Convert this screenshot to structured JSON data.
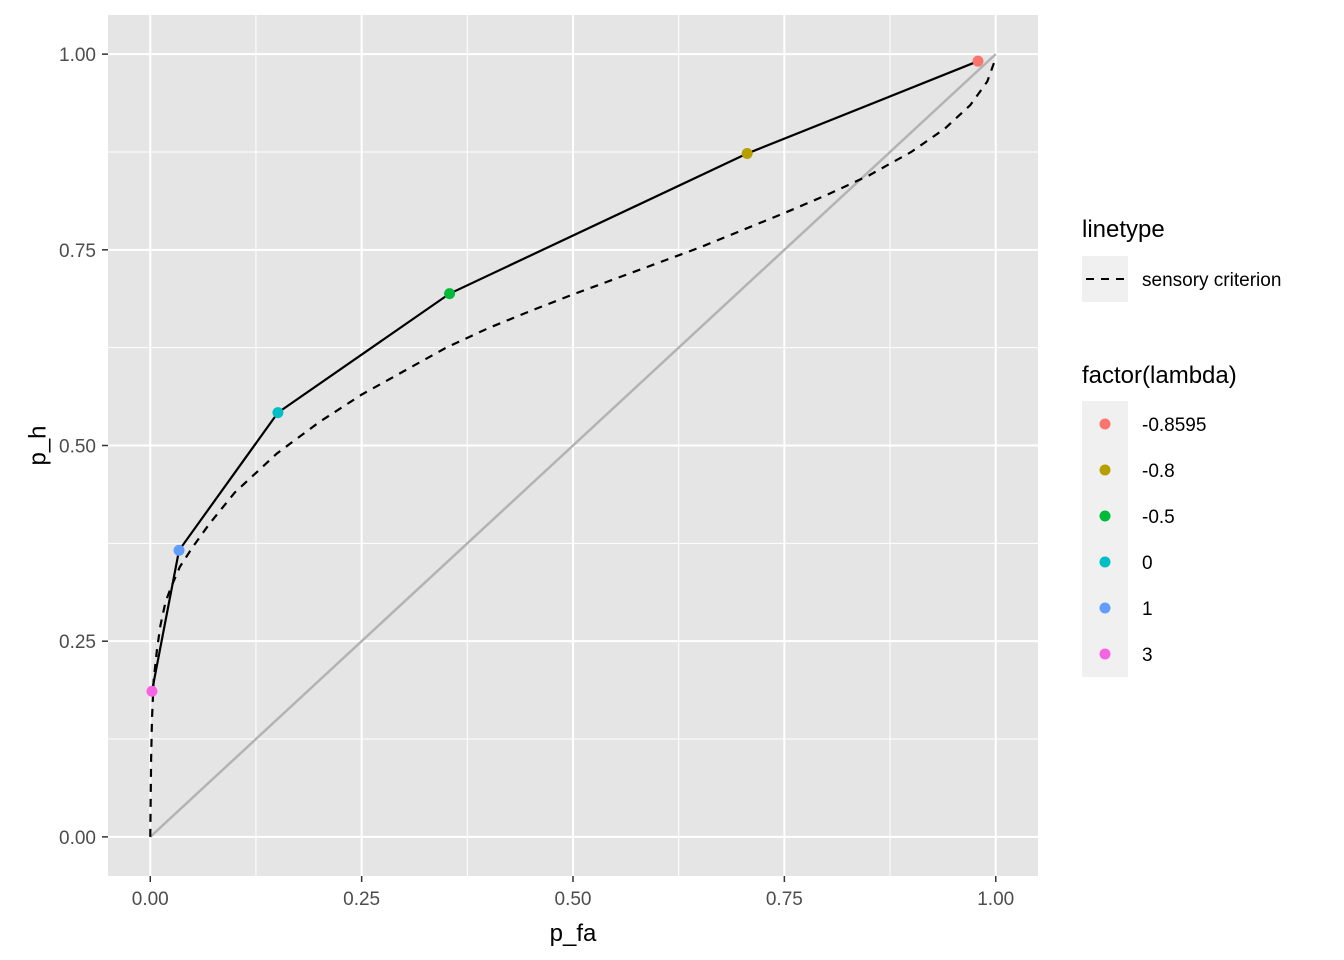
{
  "chart_data": {
    "type": "line",
    "xlabel": "p_fa",
    "ylabel": "p_h",
    "xlim": [
      -0.05,
      1.05
    ],
    "ylim": [
      -0.05,
      1.05
    ],
    "x_ticks": [
      "0.00",
      "0.25",
      "0.50",
      "0.75",
      "1.00"
    ],
    "y_ticks": [
      "0.00",
      "0.25",
      "0.50",
      "0.75",
      "1.00"
    ],
    "grid": true,
    "legend_position": "right",
    "series": [
      {
        "kind": "points-with-line",
        "color": "#000000",
        "points": [
          {
            "lambda": "-0.8595",
            "x": 0.979,
            "y": 0.991,
            "color": "#F8766D"
          },
          {
            "lambda": "-0.8",
            "x": 0.706,
            "y": 0.873,
            "color": "#B79F00"
          },
          {
            "lambda": "-0.5",
            "x": 0.354,
            "y": 0.694,
            "color": "#00BA38"
          },
          {
            "lambda": "0",
            "x": 0.151,
            "y": 0.542,
            "color": "#00BFC4"
          },
          {
            "lambda": "1",
            "x": 0.034,
            "y": 0.366,
            "color": "#619CFF"
          },
          {
            "lambda": "3",
            "x": 0.002,
            "y": 0.186,
            "color": "#F564E3"
          }
        ]
      },
      {
        "name": "sensory criterion",
        "kind": "dashed",
        "color": "#000000",
        "x": [
          0.0,
          0.0005,
          0.001,
          0.002,
          0.004,
          0.008,
          0.012,
          0.018,
          0.025,
          0.035,
          0.05,
          0.07,
          0.1,
          0.15,
          0.2,
          0.25,
          0.3,
          0.35,
          0.4,
          0.45,
          0.5,
          0.55,
          0.6,
          0.65,
          0.7,
          0.75,
          0.8,
          0.85,
          0.9,
          0.94,
          0.97,
          0.99,
          1.0
        ],
        "y": [
          0.0,
          0.05,
          0.1,
          0.15,
          0.2,
          0.24,
          0.27,
          0.3,
          0.32,
          0.345,
          0.37,
          0.4,
          0.44,
          0.49,
          0.53,
          0.565,
          0.595,
          0.625,
          0.65,
          0.672,
          0.693,
          0.713,
          0.733,
          0.753,
          0.775,
          0.797,
          0.82,
          0.845,
          0.875,
          0.905,
          0.935,
          0.965,
          0.995
        ]
      },
      {
        "kind": "reference-diagonal",
        "color": "#b3b3b3",
        "x": [
          0,
          1
        ],
        "y": [
          0,
          1
        ]
      }
    ],
    "legends": [
      {
        "title": "linetype",
        "entries": [
          "sensory criterion"
        ]
      },
      {
        "title": "factor(lambda)",
        "entries": [
          "-0.8595",
          "-0.8",
          "-0.5",
          "0",
          "1",
          "3"
        ]
      }
    ]
  },
  "colors": {
    "panel_background": "#e5e5e5",
    "grid": "#ffffff",
    "tick_text": "#4d4d4d",
    "legend_key_background": "#f0f0f0"
  }
}
